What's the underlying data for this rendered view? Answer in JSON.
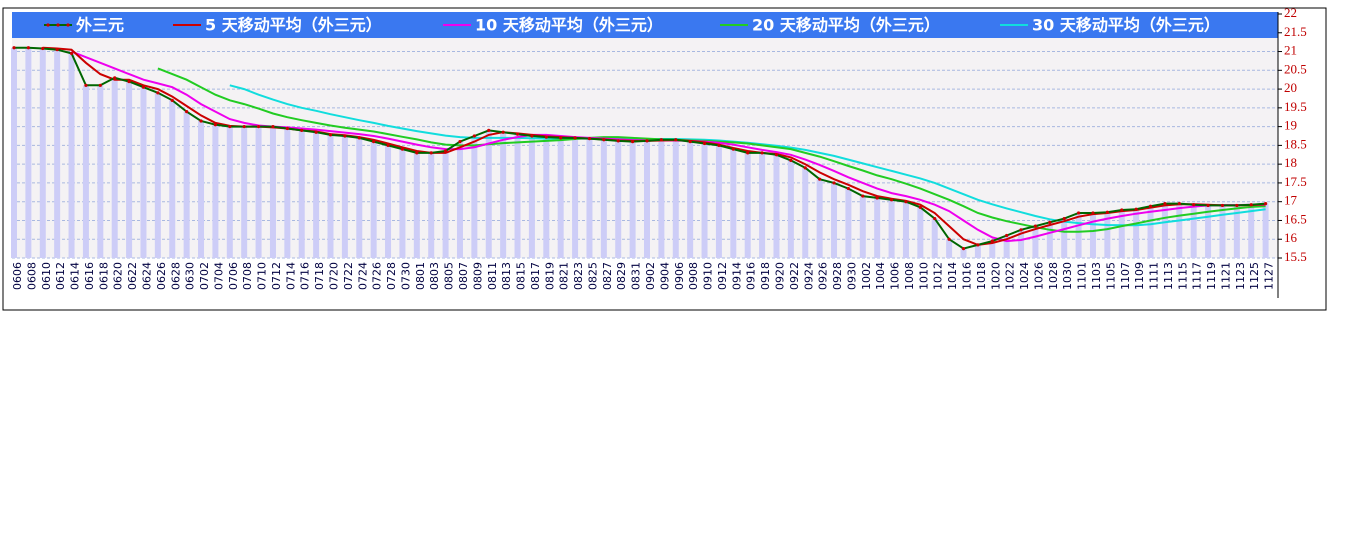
{
  "chart_data": {
    "type": "line",
    "categories": [
      "0606",
      "0608",
      "0610",
      "0612",
      "0614",
      "0616",
      "0618",
      "0620",
      "0622",
      "0624",
      "0626",
      "0628",
      "0630",
      "0702",
      "0704",
      "0706",
      "0708",
      "0710",
      "0712",
      "0714",
      "0716",
      "0718",
      "0720",
      "0722",
      "0724",
      "0726",
      "0728",
      "0730",
      "0801",
      "0803",
      "0805",
      "0807",
      "0809",
      "0811",
      "0813",
      "0815",
      "0817",
      "0819",
      "0821",
      "0823",
      "0825",
      "0827",
      "0829",
      "0831",
      "0902",
      "0904",
      "0906",
      "0908",
      "0910",
      "0912",
      "0914",
      "0916",
      "0918",
      "0920",
      "0922",
      "0924",
      "0926",
      "0928",
      "0930",
      "1002",
      "1004",
      "1006",
      "1008",
      "1010",
      "1012",
      "1014",
      "1016",
      "1018",
      "1020",
      "1022",
      "1024",
      "1026",
      "1028",
      "1030",
      "1101",
      "1103",
      "1105",
      "1107",
      "1109",
      "1111",
      "1113",
      "1115",
      "1117",
      "1119",
      "1121",
      "1123",
      "1125",
      "1127"
    ],
    "series": [
      {
        "name": "外三元",
        "color": "#006600",
        "marker_color": "#cc0000",
        "bar_color": "#cdcdf7",
        "values": [
          21.1,
          21.1,
          21.08,
          21.05,
          20.95,
          20.1,
          20.1,
          20.3,
          20.2,
          20.05,
          19.9,
          19.7,
          19.4,
          19.15,
          19.05,
          19.0,
          19.0,
          19.0,
          19.0,
          18.95,
          18.9,
          18.85,
          18.78,
          18.75,
          18.7,
          18.6,
          18.5,
          18.4,
          18.3,
          18.3,
          18.35,
          18.6,
          18.75,
          18.9,
          18.85,
          18.8,
          18.75,
          18.72,
          18.7,
          18.7,
          18.68,
          18.65,
          18.62,
          18.6,
          18.62,
          18.65,
          18.65,
          18.6,
          18.55,
          18.5,
          18.4,
          18.3,
          18.3,
          18.25,
          18.1,
          17.9,
          17.6,
          17.5,
          17.35,
          17.15,
          17.1,
          17.05,
          17.0,
          16.85,
          16.55,
          16.0,
          15.75,
          15.85,
          15.95,
          16.1,
          16.25,
          16.35,
          16.45,
          16.55,
          16.7,
          16.7,
          16.72,
          16.78,
          16.8,
          16.88,
          16.95,
          16.95,
          16.92,
          16.9,
          16.9,
          16.9,
          16.92,
          16.95
        ]
      },
      {
        "name": "5 天移动平均（外三元）",
        "color": "#cc0000",
        "values": [
          null,
          null,
          21.1,
          21.08,
          21.05,
          20.7,
          20.4,
          20.25,
          20.25,
          20.1,
          20.0,
          19.8,
          19.55,
          19.3,
          19.1,
          19.02,
          19.0,
          19.0,
          18.98,
          18.95,
          18.9,
          18.87,
          18.8,
          18.77,
          18.72,
          18.65,
          18.55,
          18.45,
          18.35,
          18.3,
          18.3,
          18.45,
          18.6,
          18.78,
          18.85,
          18.82,
          18.78,
          18.74,
          18.72,
          18.7,
          18.68,
          18.66,
          18.63,
          18.62,
          18.62,
          18.63,
          18.64,
          18.62,
          18.58,
          18.52,
          18.43,
          18.35,
          18.3,
          18.27,
          18.18,
          18.0,
          17.78,
          17.6,
          17.45,
          17.28,
          17.15,
          17.08,
          17.02,
          16.92,
          16.7,
          16.35,
          16.0,
          15.85,
          15.9,
          16.0,
          16.15,
          16.27,
          16.38,
          16.48,
          16.6,
          16.67,
          16.7,
          16.75,
          16.78,
          16.84,
          16.9,
          16.93,
          16.93,
          16.92,
          16.9,
          16.9,
          16.91,
          16.93
        ]
      },
      {
        "name": "10 天移动平均（外三元）",
        "color": "#ee00ee",
        "values": [
          null,
          null,
          null,
          null,
          21.0,
          20.85,
          20.7,
          20.55,
          20.4,
          20.25,
          20.15,
          20.05,
          19.85,
          19.6,
          19.4,
          19.2,
          19.1,
          19.03,
          19.0,
          18.98,
          18.95,
          18.92,
          18.88,
          18.84,
          18.8,
          18.75,
          18.68,
          18.6,
          18.52,
          18.45,
          18.4,
          18.4,
          18.45,
          18.55,
          18.65,
          18.72,
          18.78,
          18.78,
          18.75,
          18.72,
          18.7,
          18.68,
          18.66,
          18.64,
          18.63,
          18.63,
          18.63,
          18.62,
          18.6,
          18.57,
          18.52,
          18.45,
          18.38,
          18.32,
          18.25,
          18.12,
          17.98,
          17.82,
          17.65,
          17.5,
          17.35,
          17.23,
          17.15,
          17.05,
          16.92,
          16.75,
          16.5,
          16.25,
          16.05,
          15.95,
          15.98,
          16.07,
          16.17,
          16.27,
          16.37,
          16.47,
          16.55,
          16.62,
          16.68,
          16.73,
          16.78,
          16.83,
          16.87,
          16.9,
          16.91,
          16.91,
          16.92,
          16.92
        ]
      },
      {
        "name": "20 天移动平均（外三元）",
        "color": "#22cc22",
        "values": [
          null,
          null,
          null,
          null,
          null,
          null,
          null,
          null,
          null,
          null,
          20.55,
          20.4,
          20.25,
          20.05,
          19.85,
          19.7,
          19.6,
          19.48,
          19.35,
          19.25,
          19.17,
          19.1,
          19.03,
          18.97,
          18.92,
          18.87,
          18.8,
          18.73,
          18.66,
          18.58,
          18.52,
          18.5,
          18.5,
          18.53,
          18.56,
          18.58,
          18.6,
          18.62,
          18.64,
          18.67,
          18.7,
          18.72,
          18.72,
          18.7,
          18.68,
          18.66,
          18.65,
          18.63,
          18.62,
          18.6,
          18.58,
          18.55,
          18.5,
          18.45,
          18.4,
          18.3,
          18.2,
          18.08,
          17.95,
          17.83,
          17.7,
          17.6,
          17.48,
          17.35,
          17.2,
          17.05,
          16.88,
          16.7,
          16.58,
          16.48,
          16.4,
          16.32,
          16.25,
          16.2,
          16.2,
          16.22,
          16.27,
          16.35,
          16.42,
          16.5,
          16.57,
          16.63,
          16.68,
          16.73,
          16.78,
          16.82,
          16.86,
          16.88
        ]
      },
      {
        "name": "30 天移动平均（外三元）",
        "color": "#11dddd",
        "values": [
          null,
          null,
          null,
          null,
          null,
          null,
          null,
          null,
          null,
          null,
          null,
          null,
          null,
          null,
          null,
          20.1,
          20.0,
          19.85,
          19.72,
          19.6,
          19.5,
          19.42,
          19.33,
          19.25,
          19.17,
          19.1,
          19.02,
          18.95,
          18.88,
          18.82,
          18.76,
          18.72,
          18.7,
          18.7,
          18.7,
          18.7,
          18.69,
          18.68,
          18.68,
          18.68,
          18.68,
          18.68,
          18.67,
          18.67,
          18.67,
          18.67,
          18.67,
          18.66,
          18.65,
          18.63,
          18.6,
          18.57,
          18.53,
          18.49,
          18.44,
          18.38,
          18.3,
          18.22,
          18.12,
          18.02,
          17.92,
          17.82,
          17.72,
          17.62,
          17.5,
          17.35,
          17.2,
          17.05,
          16.93,
          16.82,
          16.72,
          16.62,
          16.53,
          16.47,
          16.43,
          16.4,
          16.38,
          16.37,
          16.37,
          16.4,
          16.45,
          16.5,
          16.55,
          16.6,
          16.65,
          16.7,
          16.75,
          16.8
        ]
      }
    ],
    "ylim": [
      15.5,
      22
    ],
    "yticks": [
      15.5,
      16,
      16.5,
      17,
      17.5,
      18,
      18.5,
      19,
      19.5,
      20,
      20.5,
      21,
      21.5,
      22
    ],
    "grid": true,
    "legend": "top"
  }
}
